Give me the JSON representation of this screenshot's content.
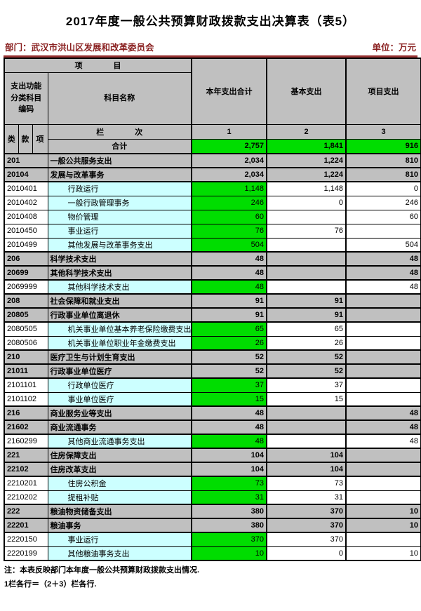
{
  "title": "2017年度一般公共预算财政拨款支出决算表（表5）",
  "meta": {
    "department": "部门：武汉市洪山区发展和改革委员会",
    "unit": "单位：万元"
  },
  "colors": {
    "highlight_green": "#00dd00",
    "group_gray": "#c0c0c0",
    "name_cyan": "#ccffff",
    "meta_red": "#993333"
  },
  "table": {
    "header": {
      "item": "项　　　　目",
      "code": "支出功能\n分类科目\n编码",
      "subject_name": "科目名称",
      "col_total": "本年支出合计",
      "col_basic": "基本支出",
      "col_project": "项目支出",
      "class": "类",
      "section": "款",
      "item_col": "项",
      "column_index": "栏　　　　次",
      "idx1": "1",
      "idx2": "2",
      "idx3": "3"
    },
    "totals": {
      "label": "合计",
      "v1": "2,757",
      "v2": "1,841",
      "v3": "916"
    },
    "rows": [
      {
        "type": "group",
        "code": "201",
        "name": "一般公共服务支出",
        "v1": "2,034",
        "v2": "1,224",
        "v3": "810"
      },
      {
        "type": "group",
        "code": "20104",
        "name": "发展与改革事务",
        "v1": "2,034",
        "v2": "1,224",
        "v3": "810"
      },
      {
        "type": "detail",
        "code": "2010401",
        "name": "行政运行",
        "v1": "1,148",
        "v2": "1,148",
        "v3": "0"
      },
      {
        "type": "detail",
        "code": "2010402",
        "name": "一般行政管理事务",
        "v1": "246",
        "v2": "0",
        "v3": "246"
      },
      {
        "type": "detail",
        "code": "2010408",
        "name": "物价管理",
        "v1": "60",
        "v2": "",
        "v3": "60"
      },
      {
        "type": "detail",
        "code": "2010450",
        "name": "事业运行",
        "v1": "76",
        "v2": "76",
        "v3": ""
      },
      {
        "type": "detail",
        "code": "2010499",
        "name": "其他发展与改革事务支出",
        "v1": "504",
        "v2": "",
        "v3": "504"
      },
      {
        "type": "group",
        "code": "206",
        "name": "科学技术支出",
        "v1": "48",
        "v2": "",
        "v3": "48"
      },
      {
        "type": "group",
        "code": "20699",
        "name": "其他科学技术支出",
        "v1": "48",
        "v2": "",
        "v3": "48"
      },
      {
        "type": "detail",
        "code": "2069999",
        "name": "其他科学技术支出",
        "v1": "48",
        "v2": "",
        "v3": "48"
      },
      {
        "type": "group",
        "code": "208",
        "name": "社会保障和就业支出",
        "v1": "91",
        "v2": "91",
        "v3": ""
      },
      {
        "type": "group",
        "code": "20805",
        "name": "行政事业单位离退休",
        "v1": "91",
        "v2": "91",
        "v3": ""
      },
      {
        "type": "detail",
        "code": "2080505",
        "name": "机关事业单位基本养老保险缴费支出",
        "v1": "65",
        "v2": "65",
        "v3": ""
      },
      {
        "type": "detail",
        "code": "2080506",
        "name": "机关事业单位职业年金缴费支出",
        "v1": "26",
        "v2": "26",
        "v3": ""
      },
      {
        "type": "group",
        "code": "210",
        "name": "医疗卫生与计划生育支出",
        "v1": "52",
        "v2": "52",
        "v3": ""
      },
      {
        "type": "group",
        "code": "21011",
        "name": "行政事业单位医疗",
        "v1": "52",
        "v2": "52",
        "v3": ""
      },
      {
        "type": "detail",
        "code": "2101101",
        "name": "行政单位医疗",
        "v1": "37",
        "v2": "37",
        "v3": ""
      },
      {
        "type": "detail",
        "code": "2101102",
        "name": "事业单位医疗",
        "v1": "15",
        "v2": "15",
        "v3": ""
      },
      {
        "type": "group",
        "code": "216",
        "name": "商业服务业等支出",
        "v1": "48",
        "v2": "",
        "v3": "48"
      },
      {
        "type": "group",
        "code": "21602",
        "name": "商业流通事务",
        "v1": "48",
        "v2": "",
        "v3": "48"
      },
      {
        "type": "detail",
        "code": "2160299",
        "name": "其他商业流通事务支出",
        "v1": "48",
        "v2": "",
        "v3": "48"
      },
      {
        "type": "group",
        "code": "221",
        "name": "住房保障支出",
        "v1": "104",
        "v2": "104",
        "v3": ""
      },
      {
        "type": "group",
        "code": "22102",
        "name": "住房改革支出",
        "v1": "104",
        "v2": "104",
        "v3": ""
      },
      {
        "type": "detail",
        "code": "2210201",
        "name": "住房公积金",
        "v1": "73",
        "v2": "73",
        "v3": ""
      },
      {
        "type": "detail",
        "code": "2210202",
        "name": "提租补贴",
        "v1": "31",
        "v2": "31",
        "v3": ""
      },
      {
        "type": "group",
        "code": "222",
        "name": "粮油物资储备支出",
        "v1": "380",
        "v2": "370",
        "v3": "10"
      },
      {
        "type": "group",
        "code": "22201",
        "name": "粮油事务",
        "v1": "380",
        "v2": "370",
        "v3": "10"
      },
      {
        "type": "detail",
        "code": "2220150",
        "name": "事业运行",
        "v1": "370",
        "v2": "370",
        "v3": ""
      },
      {
        "type": "detail",
        "code": "2220199",
        "name": "其他粮油事务支出",
        "v1": "10",
        "v2": "0",
        "v3": "10"
      }
    ]
  },
  "notes": [
    "注：本表反映部门本年度一般公共预算财政拨款支出情况.",
    "1栏各行＝（2＋3）栏各行."
  ]
}
